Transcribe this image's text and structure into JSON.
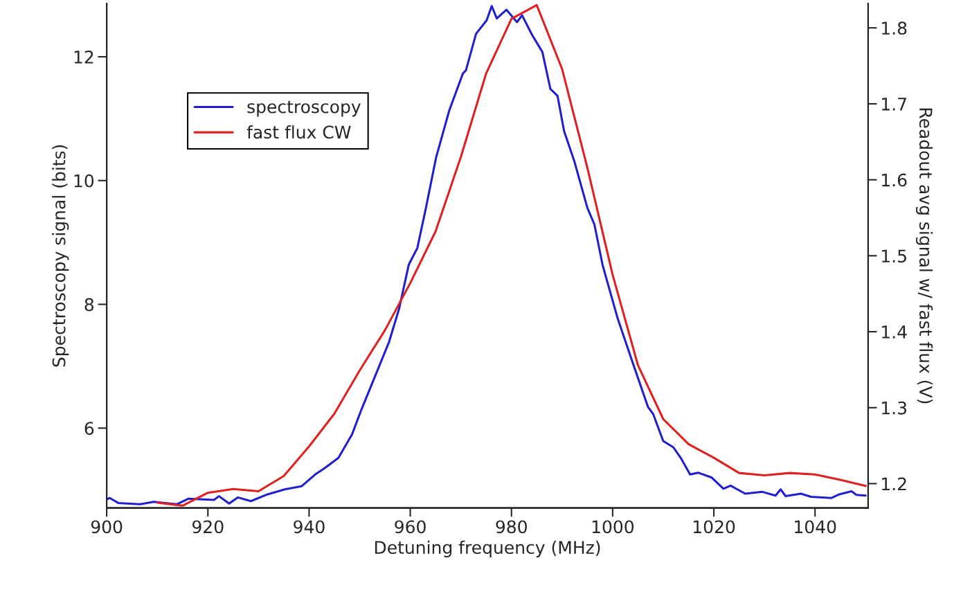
{
  "chart_data": {
    "type": "line",
    "xlabel": "Detuning frequency (MHz)",
    "ylabel": "Spectroscopy signal (bits)",
    "y2label": "Readout avg signal w/ fast flux (V)",
    "xlim": [
      900,
      1050.5
    ],
    "xticks": [
      900,
      920,
      940,
      960,
      980,
      1000,
      1020,
      1040
    ],
    "ylim": [
      4.71,
      12.86
    ],
    "yticks": [
      6,
      8,
      10,
      12
    ],
    "y2lim": [
      1.168,
      1.832
    ],
    "y2ticks": [
      1.2,
      1.3,
      1.4,
      1.5,
      1.6,
      1.7,
      1.8
    ],
    "grid": false,
    "legend": "top left",
    "line_style": "solid",
    "marker": "none",
    "series": [
      {
        "name": "spectroscopy",
        "color": "#1f1fd0",
        "axis": "y",
        "x": [
          900,
          900.6,
          902.3,
          906.6,
          909.3,
          913.9,
          916.2,
          921.2,
          922.2,
          924.2,
          925.9,
          928.5,
          931.8,
          935.2,
          938.5,
          941.2,
          943.2,
          945.8,
          948.5,
          950.4,
          953.1,
          955.8,
          957.8,
          959.7,
          961.4,
          963.1,
          965.1,
          967.7,
          970.4,
          971.0,
          973.0,
          975.1,
          976.1,
          977.1,
          979.0,
          981.1,
          982.1,
          984.1,
          986.1,
          987.7,
          989.1,
          990.4,
          992.4,
          995.0,
          996.4,
          998.0,
          1001.0,
          1003.7,
          1007.0,
          1008.0,
          1010.0,
          1012.0,
          1013.6,
          1015.3,
          1016.9,
          1019.6,
          1021.9,
          1023.3,
          1026.2,
          1029.6,
          1032.2,
          1033.2,
          1034.2,
          1037.2,
          1039.2,
          1043.2,
          1044.8,
          1047.2,
          1048.2,
          1050.0
        ],
        "values": [
          4.85,
          4.87,
          4.79,
          4.77,
          4.81,
          4.77,
          4.86,
          4.84,
          4.9,
          4.78,
          4.88,
          4.82,
          4.93,
          5.01,
          5.06,
          5.25,
          5.36,
          5.52,
          5.9,
          6.31,
          6.85,
          7.39,
          7.93,
          8.64,
          8.91,
          9.56,
          10.37,
          11.13,
          11.73,
          11.78,
          12.37,
          12.59,
          12.82,
          12.62,
          12.76,
          12.56,
          12.67,
          12.35,
          12.08,
          11.48,
          11.37,
          10.8,
          10.32,
          9.56,
          9.29,
          8.64,
          7.77,
          7.12,
          6.34,
          6.23,
          5.79,
          5.69,
          5.5,
          5.25,
          5.28,
          5.2,
          5.02,
          5.07,
          4.94,
          4.97,
          4.91,
          5.01,
          4.9,
          4.94,
          4.89,
          4.87,
          4.93,
          4.98,
          4.92,
          4.91
        ]
      },
      {
        "name": "fast flux CW",
        "color": "#e02020",
        "axis": "y2",
        "x": [
          910,
          915,
          920,
          925,
          930,
          935,
          940,
          945,
          950,
          955,
          960,
          965,
          970,
          975,
          980,
          985,
          990,
          995,
          1000,
          1005,
          1010,
          1015,
          1020,
          1025,
          1030,
          1035,
          1040,
          1045,
          1050
        ],
        "values": [
          1.175,
          1.171,
          1.188,
          1.193,
          1.19,
          1.21,
          1.249,
          1.292,
          1.349,
          1.402,
          1.464,
          1.532,
          1.63,
          1.74,
          1.812,
          1.83,
          1.746,
          1.616,
          1.475,
          1.356,
          1.285,
          1.252,
          1.234,
          1.214,
          1.211,
          1.214,
          1.212,
          1.205,
          1.197
        ]
      }
    ]
  }
}
